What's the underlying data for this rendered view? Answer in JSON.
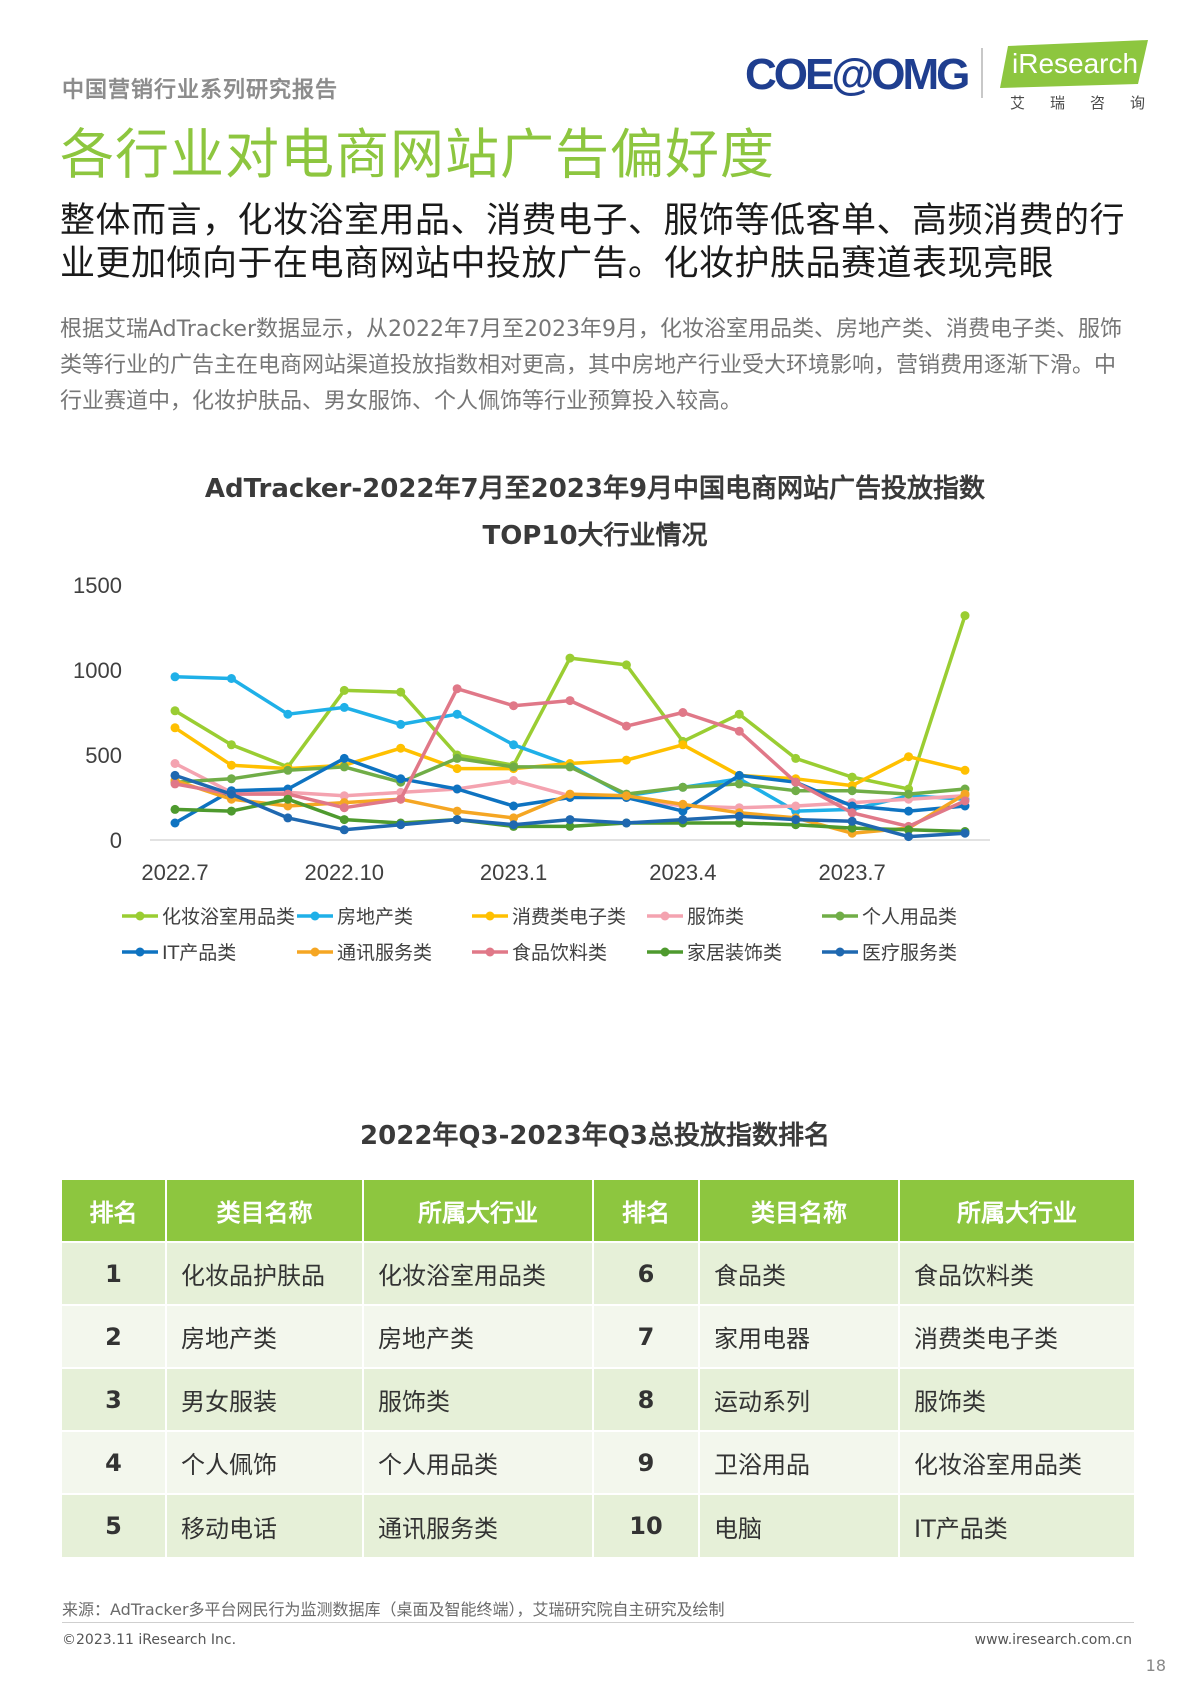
{
  "header": {
    "series_label": "中国营销行业系列研究报告",
    "logo_coe": "COE@OMG",
    "logo_iresearch": "iResearch",
    "logo_iresearch_sub": "艾瑞咨询"
  },
  "page_title": "各行业对电商网站广告偏好度",
  "headline": "整体而言，化妆浴室用品、消费电子、服饰等低客单、高频消费的行业更加倾向于在电商网站中投放广告。化妆护肤品赛道表现亮眼",
  "body_text": "根据艾瑞AdTracker数据显示，从2022年7月至2023年9月，化妆浴室用品类、房地产类、消费电子类、服饰类等行业的广告主在电商网站渠道投放指数相对更高，其中房地产行业受大环境影响，营销费用逐渐下滑。中行业赛道中，化妆护肤品、男女服饰、个人佩饰等行业预算投入较高。",
  "chart_title_line1": "AdTracker-2022年7月至2023年9月中国电商网站广告投放指数",
  "chart_title_line2": "TOP10大行业情况",
  "chart_data": {
    "type": "line",
    "title": "AdTracker-2022年7月至2023年9月中国电商网站广告投放指数 TOP10大行业情况",
    "x": [
      "2022.7",
      "2022.8",
      "2022.9",
      "2022.10",
      "2022.11",
      "2022.12",
      "2023.1",
      "2023.2",
      "2023.3",
      "2023.4",
      "2023.5",
      "2023.6",
      "2023.7",
      "2023.8",
      "2023.9"
    ],
    "x_tick_labels": [
      "2022.7",
      "2022.10",
      "2023.1",
      "2023.4",
      "2023.7"
    ],
    "ylim": [
      0,
      1500
    ],
    "y_ticks": [
      0,
      500,
      1000,
      1500
    ],
    "grid": false,
    "legend_position": "bottom",
    "series": [
      {
        "name": "化妆浴室用品类",
        "color": "#9acd32",
        "values": [
          760,
          560,
          430,
          880,
          870,
          500,
          440,
          1070,
          1030,
          580,
          740,
          480,
          370,
          300,
          1320
        ]
      },
      {
        "name": "房地产类",
        "color": "#1fb0e8",
        "values": [
          960,
          950,
          740,
          780,
          680,
          740,
          560,
          440,
          260,
          310,
          360,
          170,
          180,
          260,
          240
        ]
      },
      {
        "name": "消费类电子类",
        "color": "#ffc000",
        "values": [
          660,
          440,
          420,
          440,
          540,
          420,
          420,
          450,
          470,
          560,
          380,
          360,
          320,
          490,
          410
        ]
      },
      {
        "name": "服饰类",
        "color": "#f4a3b0",
        "values": [
          450,
          280,
          280,
          260,
          280,
          300,
          350,
          260,
          250,
          200,
          190,
          200,
          220,
          240,
          260
        ]
      },
      {
        "name": "个人用品类",
        "color": "#70ad47",
        "values": [
          340,
          360,
          410,
          430,
          340,
          480,
          430,
          430,
          270,
          310,
          330,
          290,
          290,
          270,
          300
        ]
      },
      {
        "name": "IT产品类",
        "color": "#0e73c1",
        "values": [
          100,
          290,
          300,
          480,
          360,
          300,
          200,
          250,
          250,
          170,
          380,
          340,
          200,
          170,
          200
        ]
      },
      {
        "name": "通讯服务类",
        "color": "#f5a623",
        "values": [
          350,
          240,
          200,
          220,
          240,
          170,
          130,
          270,
          260,
          210,
          160,
          130,
          40,
          70,
          270
        ]
      },
      {
        "name": "食品饮料类",
        "color": "#e07888",
        "values": [
          330,
          270,
          270,
          190,
          240,
          890,
          790,
          820,
          670,
          750,
          640,
          340,
          160,
          80,
          230
        ]
      },
      {
        "name": "家居装饰类",
        "color": "#4e9a2e",
        "values": [
          180,
          170,
          240,
          120,
          100,
          120,
          80,
          80,
          100,
          100,
          100,
          90,
          70,
          60,
          50
        ]
      },
      {
        "name": "医疗服务类",
        "color": "#1f68b0",
        "values": [
          380,
          270,
          130,
          60,
          90,
          120,
          90,
          120,
          100,
          120,
          140,
          120,
          110,
          20,
          40
        ]
      }
    ]
  },
  "table": {
    "title": "2022年Q3-2023年Q3总投放指数排名",
    "headers": [
      "排名",
      "类目名称",
      "所属大行业",
      "排名",
      "类目名称",
      "所属大行业"
    ],
    "rows": [
      [
        "1",
        "化妆品护肤品",
        "化妆浴室用品类",
        "6",
        "食品类",
        "食品饮料类"
      ],
      [
        "2",
        "房地产类",
        "房地产类",
        "7",
        "家用电器",
        "消费类电子类"
      ],
      [
        "3",
        "男女服装",
        "服饰类",
        "8",
        "运动系列",
        "服饰类"
      ],
      [
        "4",
        "个人佩饰",
        "个人用品类",
        "9",
        "卫浴用品",
        "化妆浴室用品类"
      ],
      [
        "5",
        "移动电话",
        "通讯服务类",
        "10",
        "电脑",
        "IT产品类"
      ]
    ]
  },
  "footer": {
    "source": "来源：AdTracker多平台网民行为监测数据库（桌面及智能终端），艾瑞研究院自主研究及绘制",
    "copyright": "©2023.11 iResearch Inc.",
    "website": "www.iresearch.com.cn",
    "page_number": "18"
  }
}
